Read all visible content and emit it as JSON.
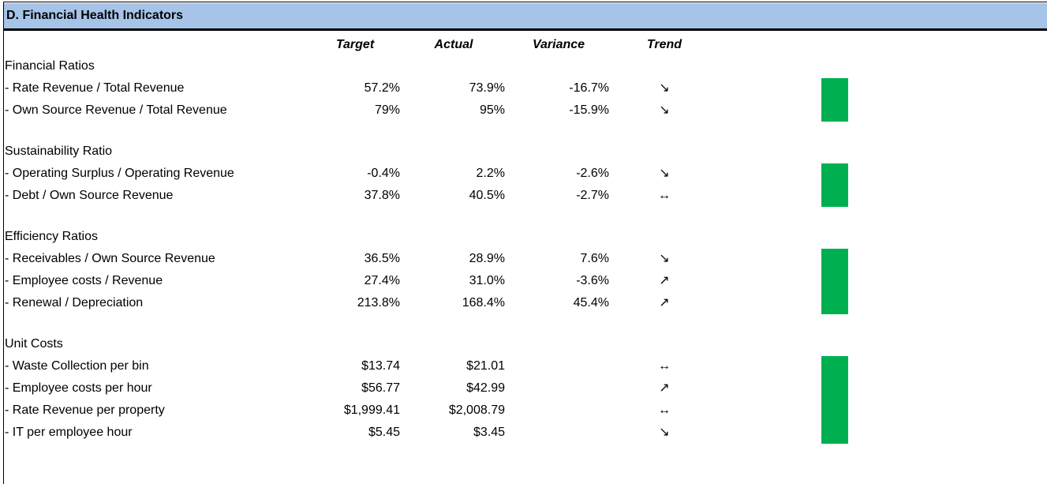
{
  "header": {
    "title": "D.  Financial Health Indicators"
  },
  "table": {
    "columns": [
      "Target",
      "Actual",
      "Variance",
      "Trend"
    ],
    "groups": [
      {
        "name": "Financial Ratios",
        "rows": [
          {
            "label": "- Rate Revenue / Total Revenue",
            "target": "57.2%",
            "actual": "73.9%",
            "variance": "-16.7%",
            "trend": "↘"
          },
          {
            "label": "- Own Source Revenue / Total Revenue",
            "target": "79%",
            "actual": "95%",
            "variance": "-15.9%",
            "trend": "↘"
          }
        ]
      },
      {
        "name": "Sustainability Ratio",
        "rows": [
          {
            "label": "- Operating Surplus / Operating Revenue",
            "target": "-0.4%",
            "actual": "2.2%",
            "variance": "-2.6%",
            "trend": "↘"
          },
          {
            "label": "- Debt / Own Source Revenue",
            "target": "37.8%",
            "actual": "40.5%",
            "variance": "-2.7%",
            "trend": "↔"
          }
        ]
      },
      {
        "name": "Efficiency Ratios",
        "rows": [
          {
            "label": "- Receivables / Own Source Revenue",
            "target": "36.5%",
            "actual": "28.9%",
            "variance": "7.6%",
            "trend": "↘"
          },
          {
            "label": "- Employee costs / Revenue",
            "target": "27.4%",
            "actual": "31.0%",
            "variance": "-3.6%",
            "trend": "↗"
          },
          {
            "label": "- Renewal / Depreciation",
            "target": "213.8%",
            "actual": "168.4%",
            "variance": "45.4%",
            "trend": "↗"
          }
        ]
      },
      {
        "name": "Unit Costs",
        "rows": [
          {
            "label": "- Waste Collection per bin",
            "target": "$13.74",
            "actual": "$21.01",
            "trend": "↔"
          },
          {
            "label": "- Employee costs per hour",
            "target": "$56.77",
            "actual": "$42.99",
            "trend": "↗"
          },
          {
            "label": "- Rate Revenue per property",
            "target": "$1,999.41",
            "actual": "$2,008.79",
            "trend": "↔"
          },
          {
            "label": "- IT per employee hour",
            "target": "$5.45",
            "actual": "$3.45",
            "trend": "↘"
          }
        ]
      }
    ]
  }
}
